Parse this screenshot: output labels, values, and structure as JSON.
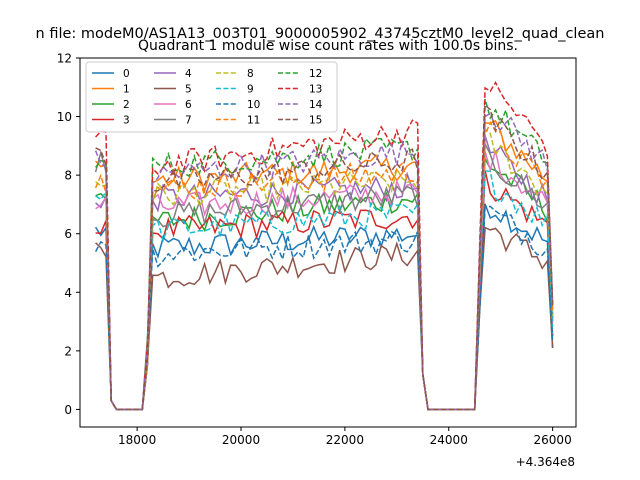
{
  "chart_data": {
    "type": "line",
    "suptitle": "n file: modeM0/AS1A13_003T01_9000005902_43745cztM0_level2_quad_clean",
    "title": "Quadrant 1 module wise count rates with 100.0s bins.",
    "xlabel": "",
    "ylabel": "",
    "x_offset_label": "+4.364e8",
    "xlim": [
      16900,
      26450
    ],
    "ylim": [
      -0.6,
      12
    ],
    "x_ticks": [
      18000,
      20000,
      22000,
      24000,
      26000
    ],
    "x_tick_labels": [
      "18000",
      "20000",
      "22000",
      "24000",
      "26000"
    ],
    "y_ticks": [
      0,
      2,
      4,
      6,
      8,
      10,
      12
    ],
    "y_tick_labels": [
      "0",
      "2",
      "4",
      "6",
      "8",
      "10",
      "12"
    ],
    "grid": false,
    "legend": {
      "placement": "top-left",
      "columns": 4
    },
    "bin_width_s": 100,
    "segments": [
      {
        "x_start": 17200,
        "x_end": 23500
      },
      {
        "x_start": 24600,
        "x_end": 26000
      }
    ],
    "gap_x": [
      17600,
      17700,
      17800,
      17900,
      18000,
      18100,
      24000,
      24100,
      24200,
      24300,
      24400,
      24500
    ],
    "series": [
      {
        "name": "0",
        "color": "#1f77b4",
        "dash": "solid",
        "level1": 5.5,
        "level2": 6.0,
        "start": 6.1,
        "end": 2.1
      },
      {
        "name": "1",
        "color": "#ff7f0e",
        "dash": "solid",
        "level1": 7.8,
        "level2": 8.3,
        "start": 8.2,
        "end": 3.5
      },
      {
        "name": "2",
        "color": "#2ca02c",
        "dash": "solid",
        "level1": 6.4,
        "level2": 7.2,
        "start": 7.5,
        "end": 3.0
      },
      {
        "name": "3",
        "color": "#d62728",
        "dash": "solid",
        "level1": 6.1,
        "level2": 6.6,
        "start": 6.1,
        "end": 2.5
      },
      {
        "name": "4",
        "color": "#9467bd",
        "dash": "solid",
        "level1": 7.2,
        "level2": 7.6,
        "start": 7.2,
        "end": 3.2
      },
      {
        "name": "5",
        "color": "#8c564b",
        "dash": "solid",
        "level1": 4.5,
        "level2": 5.3,
        "start": 5.4,
        "end": 2.1
      },
      {
        "name": "6",
        "color": "#e377c2",
        "dash": "solid",
        "level1": 6.9,
        "level2": 7.4,
        "start": 7.0,
        "end": 3.0
      },
      {
        "name": "7",
        "color": "#7f7f7f",
        "dash": "solid",
        "level1": 6.6,
        "level2": 7.3,
        "start": 8.5,
        "end": 3.1
      },
      {
        "name": "8",
        "color": "#bcbd22",
        "dash": "dashed",
        "level1": 7.3,
        "level2": 7.8,
        "start": 7.7,
        "end": 3.2
      },
      {
        "name": "9",
        "color": "#17becf",
        "dash": "dashed",
        "level1": 6.1,
        "level2": 6.7,
        "start": 7.4,
        "end": 2.6
      },
      {
        "name": "10",
        "color": "#1f77b4",
        "dash": "dashed",
        "level1": 5.3,
        "level2": 5.8,
        "start": 5.7,
        "end": 2.3
      },
      {
        "name": "11",
        "color": "#ff7f0e",
        "dash": "dashed",
        "level1": 7.5,
        "level2": 8.1,
        "start": 7.8,
        "end": 3.4
      },
      {
        "name": "12",
        "color": "#2ca02c",
        "dash": "dashed",
        "level1": 8.3,
        "level2": 8.9,
        "start": 8.3,
        "end": 3.6
      },
      {
        "name": "13",
        "color": "#d62728",
        "dash": "dashed",
        "level1": 8.3,
        "level2": 9.5,
        "start": 9.4,
        "end": 3.6
      },
      {
        "name": "14",
        "color": "#9467bd",
        "dash": "dashed",
        "level1": 8.0,
        "level2": 8.8,
        "start": 8.5,
        "end": 3.6
      },
      {
        "name": "15",
        "color": "#8c564b",
        "dash": "dashed",
        "level1": 7.7,
        "level2": 8.5,
        "start": 8.7,
        "end": 3.5
      }
    ]
  }
}
